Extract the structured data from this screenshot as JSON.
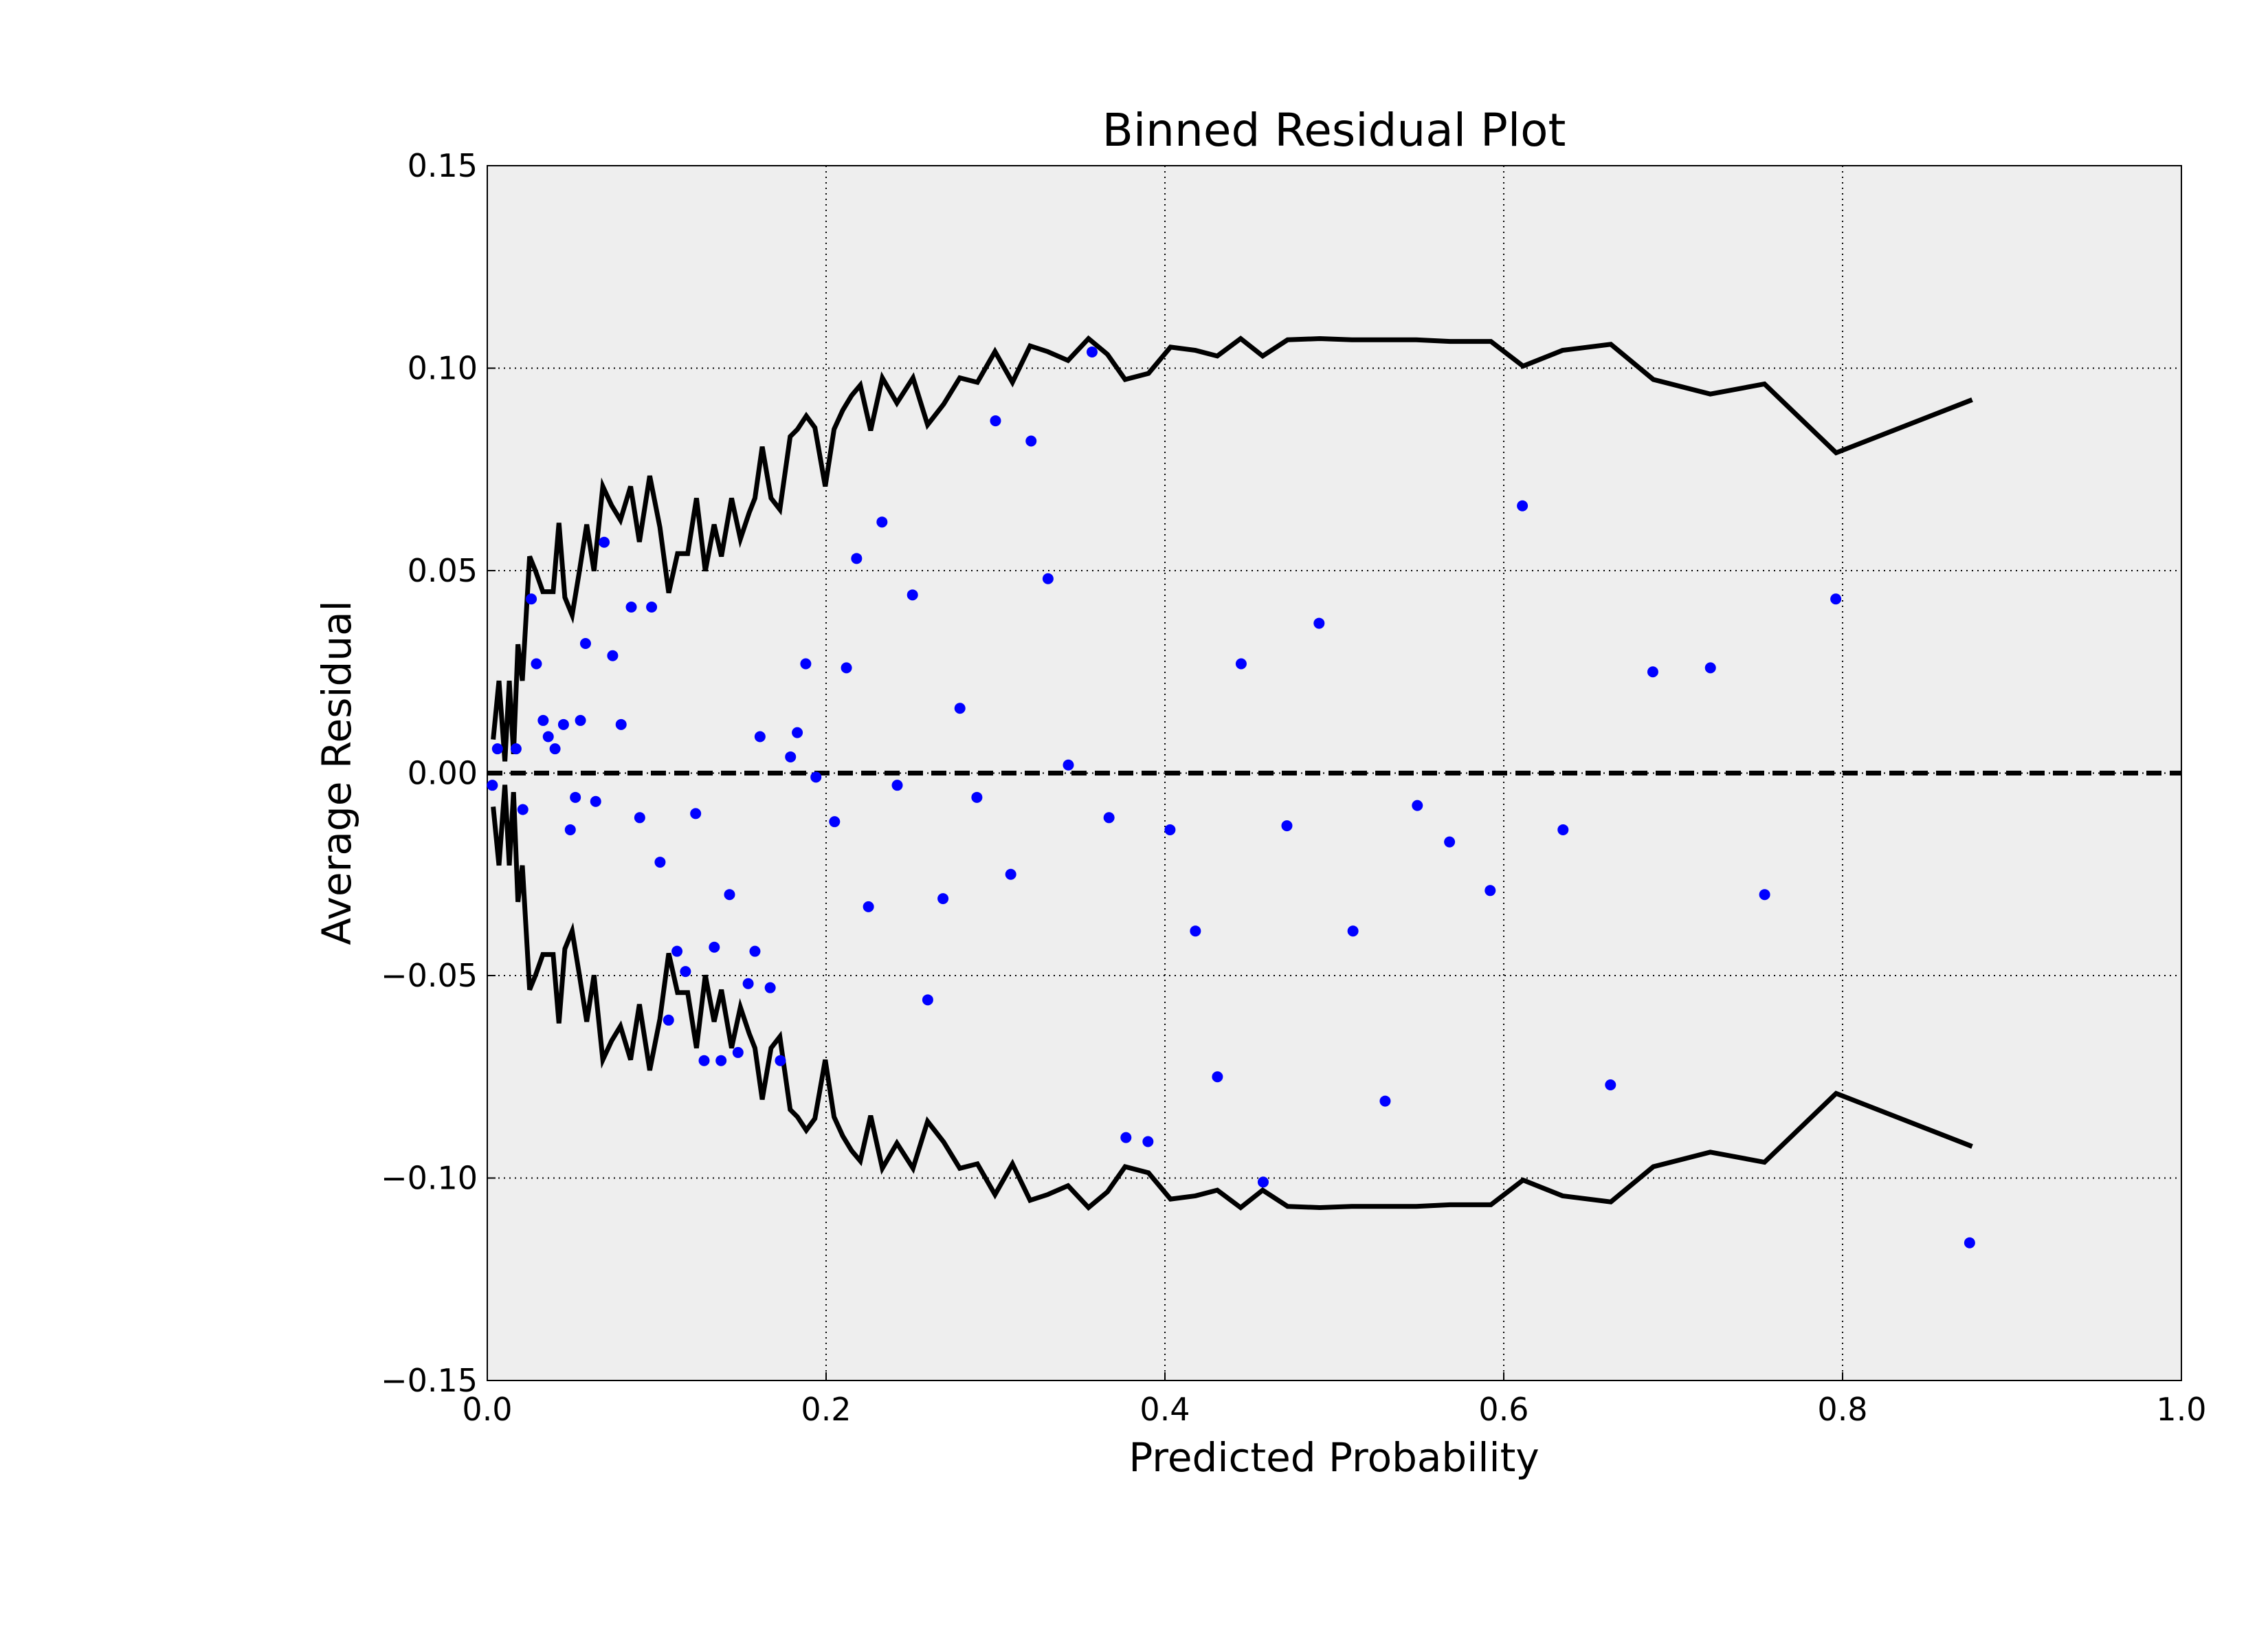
{
  "chart_data": {
    "type": "scatter",
    "title": "Binned Residual Plot",
    "xlabel": "Predicted Probability",
    "ylabel": "Average Residual",
    "xlim": [
      0,
      1
    ],
    "ylim": [
      -0.15,
      0.15
    ],
    "xticks": [
      {
        "value": 0,
        "label": "0.0"
      },
      {
        "value": 0.2,
        "label": "0.2"
      },
      {
        "value": 0.4,
        "label": "0.4"
      },
      {
        "value": 0.6,
        "label": "0.6"
      },
      {
        "value": 0.8,
        "label": "0.8"
      },
      {
        "value": 1,
        "label": "1.0"
      }
    ],
    "yticks": [
      {
        "value": -0.15,
        "label": "−0.15"
      },
      {
        "value": -0.1,
        "label": "−0.10"
      },
      {
        "value": -0.05,
        "label": "−0.05"
      },
      {
        "value": 0,
        "label": "0.00"
      },
      0.05,
      {
        "value": 0.1,
        "label": "0.10"
      },
      0.15
    ],
    "grid": true,
    "background": "#eeeeee",
    "hline": 0,
    "points": {
      "color": "#0000ff",
      "x": [
        0.003,
        0.006,
        0.017,
        0.021,
        0.026,
        0.029,
        0.033,
        0.036,
        0.04,
        0.045,
        0.049,
        0.052,
        0.055,
        0.058,
        0.064,
        0.069,
        0.074,
        0.079,
        0.085,
        0.09,
        0.097,
        0.102,
        0.107,
        0.112,
        0.117,
        0.123,
        0.128,
        0.134,
        0.138,
        0.143,
        0.148,
        0.154,
        0.158,
        0.161,
        0.167,
        0.173,
        0.179,
        0.183,
        0.188,
        0.194,
        0.205,
        0.212,
        0.218,
        0.225,
        0.233,
        0.242,
        0.251,
        0.26,
        0.269,
        0.279,
        0.289,
        0.3,
        0.309,
        0.321,
        0.331,
        0.343,
        0.357,
        0.367,
        0.377,
        0.39,
        0.403,
        0.418,
        0.431,
        0.445,
        0.458,
        0.472,
        0.491,
        0.511,
        0.53,
        0.549,
        0.568,
        0.592,
        0.611,
        0.635,
        0.663,
        0.688,
        0.722,
        0.754,
        0.796,
        0.875
      ],
      "y": [
        -0.003,
        0.006,
        0.006,
        -0.009,
        0.043,
        0.027,
        0.013,
        0.009,
        0.006,
        0.012,
        -0.014,
        -0.006,
        0.013,
        0.032,
        -0.007,
        0.057,
        0.029,
        0.012,
        0.041,
        -0.011,
        0.041,
        -0.022,
        -0.061,
        -0.044,
        -0.049,
        -0.01,
        -0.071,
        -0.043,
        -0.071,
        -0.03,
        -0.069,
        -0.052,
        -0.044,
        0.009,
        -0.053,
        -0.071,
        0.004,
        0.01,
        0.027,
        -0.001,
        -0.012,
        0.026,
        0.053,
        -0.033,
        0.062,
        -0.003,
        0.044,
        -0.056,
        -0.031,
        0.016,
        -0.006,
        0.087,
        -0.025,
        0.082,
        0.048,
        0.002,
        0.104,
        -0.011,
        -0.09,
        -0.091,
        -0.014,
        -0.039,
        -0.075,
        0.027,
        -0.101,
        -0.013,
        0.037,
        -0.039,
        -0.081,
        -0.008,
        -0.017,
        -0.029,
        0.066,
        -0.014,
        -0.077,
        0.025,
        0.026,
        -0.03,
        0.043,
        -0.116
      ]
    },
    "bounds": {
      "color": "#000000",
      "x": [
        0.0035,
        0.0069,
        0.0104,
        0.013,
        0.0155,
        0.0181,
        0.0207,
        0.025,
        0.0285,
        0.0328,
        0.0389,
        0.0423,
        0.0458,
        0.0501,
        0.0544,
        0.0587,
        0.063,
        0.0682,
        0.0734,
        0.0786,
        0.0846,
        0.0898,
        0.0959,
        0.1019,
        0.1071,
        0.1123,
        0.1183,
        0.1235,
        0.1287,
        0.1339,
        0.1382,
        0.1442,
        0.1494,
        0.1546,
        0.158,
        0.1623,
        0.1675,
        0.1727,
        0.1788,
        0.1831,
        0.1883,
        0.1934,
        0.1995,
        0.2047,
        0.2098,
        0.215,
        0.2202,
        0.2263,
        0.2332,
        0.2418,
        0.2513,
        0.2599,
        0.2694,
        0.2789,
        0.2893,
        0.2997,
        0.31,
        0.3204,
        0.3307,
        0.3428,
        0.3549,
        0.3661,
        0.3765,
        0.3903,
        0.4033,
        0.418,
        0.4309,
        0.4447,
        0.4577,
        0.4724,
        0.4914,
        0.5104,
        0.5294,
        0.5484,
        0.5682,
        0.5924,
        0.6114,
        0.6347,
        0.6632,
        0.6883,
        0.7219,
        0.7539,
        0.7962,
        0.8765
      ],
      "upper": [
        0.0083,
        0.0228,
        0.0029,
        0.0228,
        0.0047,
        0.0318,
        0.0228,
        0.0535,
        0.0499,
        0.0448,
        0.0448,
        0.0618,
        0.0434,
        0.039,
        0.0499,
        0.0614,
        0.0499,
        0.0708,
        0.0661,
        0.0625,
        0.0708,
        0.0571,
        0.0734,
        0.0607,
        0.0445,
        0.0542,
        0.0542,
        0.0679,
        0.0499,
        0.0614,
        0.0535,
        0.0679,
        0.0578,
        0.0643,
        0.0679,
        0.0806,
        0.0679,
        0.0651,
        0.0831,
        0.0849,
        0.0882,
        0.0853,
        0.0708,
        0.0849,
        0.0896,
        0.0932,
        0.0958,
        0.0846,
        0.0976,
        0.0914,
        0.0976,
        0.086,
        0.0911,
        0.0976,
        0.0965,
        0.1041,
        0.0965,
        0.1055,
        0.1041,
        0.1019,
        0.1073,
        0.1034,
        0.0972,
        0.0987,
        0.1052,
        0.1044,
        0.103,
        0.1073,
        0.103,
        0.107,
        0.1073,
        0.107,
        0.107,
        0.107,
        0.1066,
        0.1066,
        0.1005,
        0.1044,
        0.1059,
        0.0972,
        0.0936,
        0.0961,
        0.0791,
        0.0922
      ],
      "lower": [
        -0.0083,
        -0.0228,
        -0.0029,
        -0.0228,
        -0.0047,
        -0.0318,
        -0.0228,
        -0.0535,
        -0.0499,
        -0.0448,
        -0.0448,
        -0.0618,
        -0.0434,
        -0.039,
        -0.0499,
        -0.0614,
        -0.0499,
        -0.0708,
        -0.0661,
        -0.0625,
        -0.0708,
        -0.0571,
        -0.0734,
        -0.0607,
        -0.0445,
        -0.0542,
        -0.0542,
        -0.0679,
        -0.0499,
        -0.0614,
        -0.0535,
        -0.0679,
        -0.0578,
        -0.0643,
        -0.0679,
        -0.0806,
        -0.0679,
        -0.0651,
        -0.0831,
        -0.0849,
        -0.0882,
        -0.0853,
        -0.0708,
        -0.0849,
        -0.0896,
        -0.0932,
        -0.0958,
        -0.0846,
        -0.0976,
        -0.0914,
        -0.0976,
        -0.086,
        -0.0911,
        -0.0976,
        -0.0965,
        -0.1041,
        -0.0965,
        -0.1055,
        -0.1041,
        -0.1019,
        -0.1073,
        -0.1034,
        -0.0972,
        -0.0987,
        -0.1052,
        -0.1044,
        -0.103,
        -0.1073,
        -0.103,
        -0.107,
        -0.1073,
        -0.107,
        -0.107,
        -0.107,
        -0.1066,
        -0.1066,
        -0.1005,
        -0.1044,
        -0.1059,
        -0.0972,
        -0.0936,
        -0.0961,
        -0.0791,
        -0.0922
      ]
    }
  }
}
